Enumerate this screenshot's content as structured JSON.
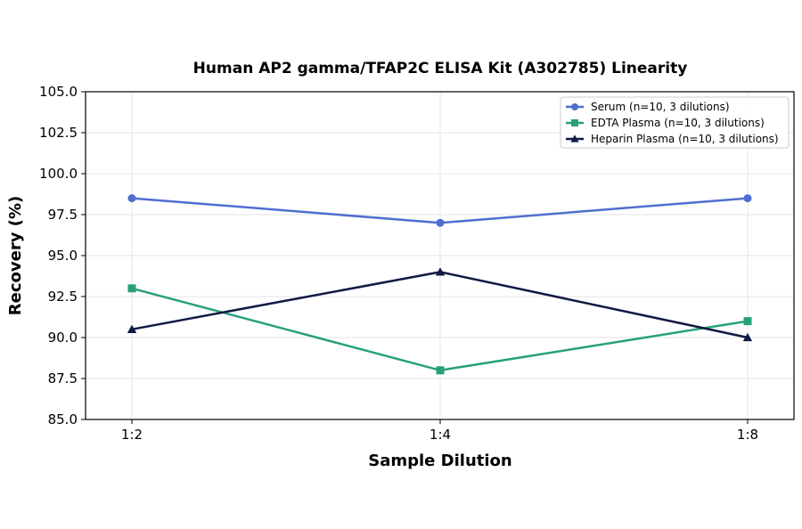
{
  "chart_data": {
    "type": "line",
    "title": "Human AP2 gamma/TFAP2C ELISA Kit (A302785) Linearity",
    "xlabel": "Sample Dilution",
    "ylabel": "Recovery (%)",
    "categories": [
      "1:2",
      "1:4",
      "1:8"
    ],
    "ylim": [
      85.0,
      105.0
    ],
    "yticks": [
      "85.0",
      "87.5",
      "90.0",
      "92.5",
      "95.0",
      "97.5",
      "100.0",
      "102.5",
      "105.0"
    ],
    "grid": true,
    "legend_position": "top-right",
    "series": [
      {
        "name": "Serum (n=10, 3 dilutions)",
        "values": [
          98.5,
          97.0,
          98.5
        ],
        "color": "#4f6fd0",
        "marker": "circle"
      },
      {
        "name": "EDTA Plasma (n=10, 3 dilutions)",
        "values": [
          93.0,
          88.0,
          91.0
        ],
        "color": "#27a07a",
        "marker": "square"
      },
      {
        "name": "Heparin Plasma (n=10, 3 dilutions)",
        "values": [
          90.5,
          94.0,
          90.0
        ],
        "color": "#0f1a45",
        "marker": "triangle"
      }
    ]
  }
}
